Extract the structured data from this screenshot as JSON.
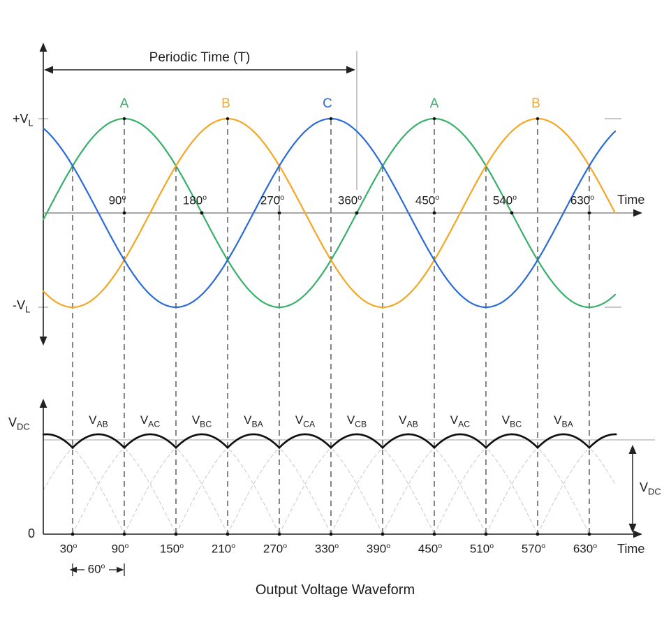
{
  "figure": {
    "caption": "Output Voltage Waveform"
  },
  "colors": {
    "phase_a": "#37b06a",
    "phase_b": "#f5a623",
    "phase_c": "#2b6bd8",
    "envelope": "#111111",
    "axis_gray": "#8c8c8c",
    "light_gray": "#b5b5b5",
    "arc_gray": "#c9c9c9",
    "dashed_line": "#222222",
    "text": "#1c1c1c"
  },
  "top_chart": {
    "periodic_time_label": "Periodic Time (T)",
    "time_axis_label": "Time",
    "plus_v": {
      "main": "+V",
      "sub": "L"
    },
    "minus_v": {
      "main": "-V",
      "sub": "L"
    },
    "degree_suffix": "o",
    "tick_degrees": [
      90,
      180,
      270,
      360,
      450,
      540,
      630
    ],
    "phase_labels": [
      {
        "text": "A",
        "deg": 90,
        "color_key": "phase_a"
      },
      {
        "text": "B",
        "deg": 208,
        "color_key": "phase_b"
      },
      {
        "text": "C",
        "deg": 326,
        "color_key": "phase_c"
      },
      {
        "text": "A",
        "deg": 450,
        "color_key": "phase_a"
      },
      {
        "text": "B",
        "deg": 568,
        "color_key": "phase_b"
      }
    ],
    "phases": [
      {
        "name": "A",
        "phase_deg": 0,
        "color_key": "phase_a"
      },
      {
        "name": "B",
        "phase_deg": -120,
        "color_key": "phase_b"
      },
      {
        "name": "C",
        "phase_deg": -240,
        "color_key": "phase_c"
      }
    ]
  },
  "bottom_chart": {
    "vdc_left": {
      "main": "V",
      "sub": "DC"
    },
    "vdc_right": {
      "main": "V",
      "sub": "DC"
    },
    "zero_label": "0",
    "time_axis_label": "Time",
    "degree_suffix": "o",
    "tick_degrees": [
      30,
      90,
      150,
      210,
      270,
      330,
      390,
      450,
      510,
      570,
      630
    ],
    "segment_labels": [
      {
        "main": "V",
        "sub": "AB"
      },
      {
        "main": "V",
        "sub": "AC"
      },
      {
        "main": "V",
        "sub": "BC"
      },
      {
        "main": "V",
        "sub": "BA"
      },
      {
        "main": "V",
        "sub": "CA"
      },
      {
        "main": "V",
        "sub": "CB"
      },
      {
        "main": "V",
        "sub": "AB"
      },
      {
        "main": "V",
        "sub": "AC"
      },
      {
        "main": "V",
        "sub": "BC"
      },
      {
        "main": "V",
        "sub": "BA"
      }
    ],
    "sixty": {
      "value": "60",
      "suffix": "o"
    }
  },
  "chart_data": [
    {
      "type": "line",
      "title": "Three-phase input voltages",
      "xlabel": "Time",
      "x_unit": "degrees",
      "x_range": [
        0,
        660
      ],
      "x_ticks_deg": [
        90,
        180,
        270,
        360,
        450,
        540,
        630
      ],
      "y_levels": {
        "positive_peak": "+VL",
        "zero": 0,
        "negative_peak": "-VL"
      },
      "periodic_time_deg": 360,
      "series": [
        {
          "name": "A",
          "model": "sin(x)",
          "peaks_deg": [
            90,
            450
          ],
          "color": "#37b06a"
        },
        {
          "name": "B",
          "model": "sin(x-120)",
          "peaks_deg": [
            210,
            570
          ],
          "color": "#f5a623"
        },
        {
          "name": "C",
          "model": "sin(x-240)",
          "peaks_deg": [
            330
          ],
          "color": "#2b6bd8"
        }
      ],
      "grid": "dashed vertical lines every 60 degrees starting at 30",
      "legend_position": "phase letters above positive peaks"
    },
    {
      "type": "line",
      "title": "Output Voltage Waveform",
      "xlabel": "Time",
      "x_ticks_deg": [
        30,
        90,
        150,
        210,
        270,
        330,
        390,
        450,
        510,
        570,
        630
      ],
      "ripple_interval_deg": 60,
      "conducting_pairs_sequence": [
        "VAB",
        "VAC",
        "VBC",
        "VBA",
        "VCA",
        "VCB",
        "VAB",
        "VAC",
        "VBC",
        "VBA"
      ],
      "y_levels": {
        "average": "VDC",
        "zero": 0
      },
      "description": "Envelope of rectified line-to-line voltages (six-pulse); cusps every 60 degrees at 30+60k; dashed arcs show individual line-voltage humps"
    }
  ]
}
